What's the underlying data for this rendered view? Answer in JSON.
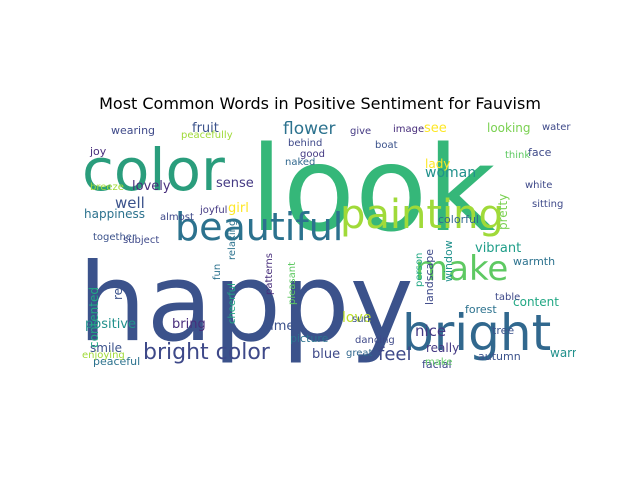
{
  "chart_data": {
    "type": "wordcloud",
    "title": "Most Common Words in Positive Sentiment for Fauvism",
    "words": [
      {
        "text": "look",
        "weight": 100,
        "color": "#35b779"
      },
      {
        "text": "happy",
        "weight": 96,
        "color": "#3b528b"
      },
      {
        "text": "color",
        "weight": 56,
        "color": "#2a9d7c"
      },
      {
        "text": "beautiful",
        "weight": 38,
        "color": "#2c728e"
      },
      {
        "text": "painting",
        "weight": 34,
        "color": "#a0da39"
      },
      {
        "text": "make",
        "weight": 32,
        "color": "#5ec962"
      },
      {
        "text": "bright",
        "weight": 42,
        "color": "#31688e"
      },
      {
        "text": "bright color",
        "weight": 20,
        "color": "#3e4989"
      },
      {
        "text": "feel",
        "weight": 16,
        "color": "#3e4989"
      },
      {
        "text": "flower",
        "weight": 14,
        "color": "#2c728e"
      },
      {
        "text": "lovely",
        "weight": 12,
        "color": "#472d7b"
      },
      {
        "text": "woman",
        "weight": 12,
        "color": "#21918c"
      },
      {
        "text": "positive",
        "weight": 12,
        "color": "#21918c"
      },
      {
        "text": "vibrant",
        "weight": 12,
        "color": "#1f9e89"
      },
      {
        "text": "fruit",
        "weight": 11,
        "color": "#3b528b"
      },
      {
        "text": "sense",
        "weight": 11,
        "color": "#443983"
      },
      {
        "text": "happiness",
        "weight": 10,
        "color": "#2c728e"
      },
      {
        "text": "smile",
        "weight": 10,
        "color": "#3b528b"
      },
      {
        "text": "bring",
        "weight": 11,
        "color": "#472d7b"
      },
      {
        "text": "well",
        "weight": 10,
        "color": "#3b528b"
      },
      {
        "text": "nice",
        "weight": 11,
        "color": "#443983"
      },
      {
        "text": "love",
        "weight": 10,
        "color": "#bddf26"
      },
      {
        "text": "contented",
        "weight": 10,
        "color": "#22a884"
      },
      {
        "text": "red",
        "weight": 10,
        "color": "#3b528b"
      },
      {
        "text": "looking",
        "weight": 9,
        "color": "#7ad151"
      },
      {
        "text": "see",
        "weight": 9,
        "color": "#fde725"
      },
      {
        "text": "blue",
        "weight": 10,
        "color": "#3e4989"
      },
      {
        "text": "great",
        "weight": 9,
        "color": "#31688e"
      },
      {
        "text": "really",
        "weight": 9,
        "color": "#443983"
      },
      {
        "text": "facial",
        "weight": 9,
        "color": "#3e4989"
      },
      {
        "text": "pretty",
        "weight": 9,
        "color": "#7ad151"
      },
      {
        "text": "make",
        "weight": 8,
        "color": "#5ec962"
      },
      {
        "text": "warm",
        "weight": 8,
        "color": "#21918c"
      },
      {
        "text": "content",
        "weight": 8,
        "color": "#22a884"
      },
      {
        "text": "warmth",
        "weight": 8,
        "color": "#2c728e"
      },
      {
        "text": "joy",
        "weight": 8,
        "color": "#472d7b"
      },
      {
        "text": "wearing",
        "weight": 8,
        "color": "#3e4989"
      },
      {
        "text": "peaceful",
        "weight": 8,
        "color": "#2c728e"
      },
      {
        "text": "peacefully",
        "weight": 7,
        "color": "#a0da39"
      },
      {
        "text": "give",
        "weight": 8,
        "color": "#443983"
      },
      {
        "text": "image",
        "weight": 7,
        "color": "#472d7b"
      },
      {
        "text": "behind",
        "weight": 7,
        "color": "#3e4989"
      },
      {
        "text": "boat",
        "weight": 7,
        "color": "#3b528b"
      },
      {
        "text": "naked",
        "weight": 7,
        "color": "#31688e"
      },
      {
        "text": "good",
        "weight": 7,
        "color": "#443983"
      },
      {
        "text": "lady",
        "weight": 7,
        "color": "#fde725"
      },
      {
        "text": "sun",
        "weight": 7,
        "color": "#3b528b"
      },
      {
        "text": "face",
        "weight": 8,
        "color": "#3e4989"
      },
      {
        "text": "think",
        "weight": 7,
        "color": "#5ec962"
      },
      {
        "text": "white",
        "weight": 7,
        "color": "#3e4989"
      },
      {
        "text": "water",
        "weight": 7,
        "color": "#3e4989"
      },
      {
        "text": "expression",
        "weight": 7,
        "color": "#21918c"
      },
      {
        "text": "breeze",
        "weight": 7,
        "color": "#a0da39"
      },
      {
        "text": "girl",
        "weight": 8,
        "color": "#fde725"
      },
      {
        "text": "almost",
        "weight": 7,
        "color": "#3e4989"
      },
      {
        "text": "joyful",
        "weight": 7,
        "color": "#443983"
      },
      {
        "text": "together",
        "weight": 7,
        "color": "#3b528b"
      },
      {
        "text": "subject",
        "weight": 7,
        "color": "#3e4989"
      },
      {
        "text": "relaxing",
        "weight": 7,
        "color": "#2c728e"
      },
      {
        "text": "patterns",
        "weight": 7,
        "color": "#472d7b"
      },
      {
        "text": "cheerful",
        "weight": 7,
        "color": "#22a884"
      },
      {
        "text": "time",
        "weight": 8,
        "color": "#3b528b"
      },
      {
        "text": "pleasant",
        "weight": 7,
        "color": "#5ec962"
      },
      {
        "text": "dancing",
        "weight": 7,
        "color": "#3e4989"
      },
      {
        "text": "picture",
        "weight": 7,
        "color": "#2c728e"
      },
      {
        "text": "colorful",
        "weight": 7,
        "color": "#31688e"
      },
      {
        "text": "window",
        "weight": 7,
        "color": "#21918c"
      },
      {
        "text": "landscape",
        "weight": 7,
        "color": "#3e4989"
      },
      {
        "text": "person",
        "weight": 7,
        "color": "#22a884"
      },
      {
        "text": "forest",
        "weight": 7,
        "color": "#2c728e"
      },
      {
        "text": "tree",
        "weight": 7,
        "color": "#3b528b"
      },
      {
        "text": "table",
        "weight": 7,
        "color": "#3e4989"
      },
      {
        "text": "autumn",
        "weight": 7,
        "color": "#3b528b"
      },
      {
        "text": "enjoying",
        "weight": 6,
        "color": "#a0da39"
      },
      {
        "text": "fun",
        "weight": 6,
        "color": "#2c728e"
      },
      {
        "text": "sitting",
        "weight": 6,
        "color": "#3e4989"
      }
    ]
  }
}
